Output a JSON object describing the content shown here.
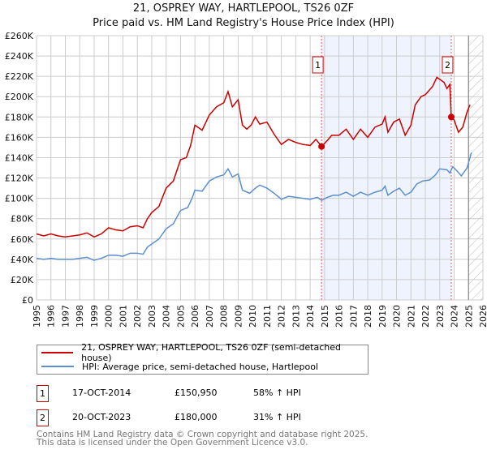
{
  "chart_data": {
    "type": "line",
    "title": "21, OSPREY WAY, HARTLEPOOL, TS26 0ZF",
    "subtitle": "Price paid vs. HM Land Registry's House Price Index (HPI)",
    "xlim": [
      1995,
      2026
    ],
    "ylim": [
      0,
      260000
    ],
    "x_ticks": [
      "1995",
      "1996",
      "1997",
      "1998",
      "1999",
      "2000",
      "2001",
      "2002",
      "2003",
      "2004",
      "2005",
      "2006",
      "2007",
      "2008",
      "2009",
      "2010",
      "2011",
      "2012",
      "2013",
      "2014",
      "2015",
      "2016",
      "2017",
      "2018",
      "2019",
      "2020",
      "2021",
      "2022",
      "2023",
      "2024",
      "2025",
      "2026"
    ],
    "y_ticks": [
      {
        "v": 0,
        "label": "£0"
      },
      {
        "v": 20000,
        "label": "£20K"
      },
      {
        "v": 40000,
        "label": "£40K"
      },
      {
        "v": 60000,
        "label": "£60K"
      },
      {
        "v": 80000,
        "label": "£80K"
      },
      {
        "v": 100000,
        "label": "£100K"
      },
      {
        "v": 120000,
        "label": "£120K"
      },
      {
        "v": 140000,
        "label": "£140K"
      },
      {
        "v": 160000,
        "label": "£160K"
      },
      {
        "v": 180000,
        "label": "£180K"
      },
      {
        "v": 200000,
        "label": "£200K"
      },
      {
        "v": 220000,
        "label": "£220K"
      },
      {
        "v": 240000,
        "label": "£240K"
      },
      {
        "v": 260000,
        "label": "£260K"
      }
    ],
    "grid": true,
    "series": [
      {
        "name": "21, OSPREY WAY, HARTLEPOOL, TS26 0ZF (semi-detached house)",
        "color": "#cc0000",
        "points": [
          [
            1995,
            65
          ],
          [
            1995.5,
            63
          ],
          [
            1996,
            65
          ],
          [
            1996.5,
            63
          ],
          [
            1997,
            62
          ],
          [
            1997.5,
            63
          ],
          [
            1998,
            64
          ],
          [
            1998.5,
            66
          ],
          [
            1999,
            62
          ],
          [
            1999.5,
            65
          ],
          [
            2000,
            71
          ],
          [
            2000.5,
            69
          ],
          [
            2001,
            68
          ],
          [
            2001.5,
            72
          ],
          [
            2002,
            73
          ],
          [
            2002.4,
            71
          ],
          [
            2002.7,
            80
          ],
          [
            2003,
            86
          ],
          [
            2003.5,
            92
          ],
          [
            2004,
            110
          ],
          [
            2004.5,
            117
          ],
          [
            2005,
            138
          ],
          [
            2005.4,
            140
          ],
          [
            2005.7,
            152
          ],
          [
            2006,
            172
          ],
          [
            2006.5,
            167
          ],
          [
            2007,
            182
          ],
          [
            2007.5,
            190
          ],
          [
            2008,
            194
          ],
          [
            2008.3,
            205
          ],
          [
            2008.6,
            190
          ],
          [
            2009,
            197
          ],
          [
            2009.3,
            172
          ],
          [
            2009.6,
            168
          ],
          [
            2009.9,
            172
          ],
          [
            2010.2,
            180
          ],
          [
            2010.5,
            173
          ],
          [
            2011,
            175
          ],
          [
            2011.5,
            163
          ],
          [
            2012,
            153
          ],
          [
            2012.5,
            158
          ],
          [
            2013,
            155
          ],
          [
            2013.5,
            153
          ],
          [
            2014,
            152
          ],
          [
            2014.4,
            158
          ],
          [
            2014.8,
            151
          ],
          [
            2015.2,
            157
          ],
          [
            2015.5,
            162
          ],
          [
            2016,
            162
          ],
          [
            2016.5,
            168
          ],
          [
            2017,
            158
          ],
          [
            2017.5,
            168
          ],
          [
            2018,
            160
          ],
          [
            2018.5,
            170
          ],
          [
            2019,
            173
          ],
          [
            2019.2,
            180
          ],
          [
            2019.4,
            165
          ],
          [
            2019.8,
            175
          ],
          [
            2020.2,
            178
          ],
          [
            2020.6,
            162
          ],
          [
            2021,
            172
          ],
          [
            2021.3,
            192
          ],
          [
            2021.7,
            200
          ],
          [
            2022,
            202
          ],
          [
            2022.5,
            210
          ],
          [
            2022.8,
            219
          ],
          [
            2023.3,
            214
          ],
          [
            2023.5,
            208
          ],
          [
            2023.7,
            212
          ],
          [
            2023.8,
            180
          ],
          [
            2024,
            177
          ],
          [
            2024.3,
            165
          ],
          [
            2024.6,
            170
          ],
          [
            2024.9,
            185
          ],
          [
            2025.1,
            192
          ]
        ]
      },
      {
        "name": "HPI: Average price, semi-detached house, Hartlepool",
        "color": "#5b8fd0",
        "points": [
          [
            1995,
            41
          ],
          [
            1995.5,
            40
          ],
          [
            1996,
            41
          ],
          [
            1996.5,
            40
          ],
          [
            1997,
            40
          ],
          [
            1997.5,
            40
          ],
          [
            1998,
            41
          ],
          [
            1998.5,
            42
          ],
          [
            1999,
            39
          ],
          [
            1999.5,
            41
          ],
          [
            2000,
            44
          ],
          [
            2000.5,
            44
          ],
          [
            2001,
            43
          ],
          [
            2001.5,
            46
          ],
          [
            2002,
            46
          ],
          [
            2002.4,
            45
          ],
          [
            2002.7,
            52
          ],
          [
            2003,
            55
          ],
          [
            2003.5,
            60
          ],
          [
            2004,
            70
          ],
          [
            2004.5,
            75
          ],
          [
            2005,
            88
          ],
          [
            2005.5,
            91
          ],
          [
            2005.8,
            100
          ],
          [
            2006,
            108
          ],
          [
            2006.5,
            107
          ],
          [
            2007,
            117
          ],
          [
            2007.5,
            121
          ],
          [
            2008,
            123
          ],
          [
            2008.3,
            129
          ],
          [
            2008.6,
            121
          ],
          [
            2009,
            124
          ],
          [
            2009.3,
            108
          ],
          [
            2009.8,
            105
          ],
          [
            2010.2,
            110
          ],
          [
            2010.5,
            113
          ],
          [
            2011,
            110
          ],
          [
            2011.5,
            105
          ],
          [
            2012,
            99
          ],
          [
            2012.5,
            102
          ],
          [
            2013,
            101
          ],
          [
            2013.5,
            100
          ],
          [
            2014,
            99
          ],
          [
            2014.5,
            101
          ],
          [
            2014.8,
            98
          ],
          [
            2015.2,
            101
          ],
          [
            2015.6,
            103
          ],
          [
            2016,
            103
          ],
          [
            2016.5,
            106
          ],
          [
            2017,
            102
          ],
          [
            2017.5,
            106
          ],
          [
            2018,
            103
          ],
          [
            2018.5,
            106
          ],
          [
            2019,
            108
          ],
          [
            2019.2,
            112
          ],
          [
            2019.4,
            103
          ],
          [
            2019.8,
            107
          ],
          [
            2020.2,
            110
          ],
          [
            2020.6,
            103
          ],
          [
            2021,
            106
          ],
          [
            2021.4,
            114
          ],
          [
            2021.8,
            117
          ],
          [
            2022.3,
            118
          ],
          [
            2022.7,
            123
          ],
          [
            2023,
            129
          ],
          [
            2023.5,
            128
          ],
          [
            2023.7,
            125
          ],
          [
            2023.9,
            131
          ],
          [
            2024.2,
            127
          ],
          [
            2024.5,
            122
          ],
          [
            2024.9,
            130
          ],
          [
            2025.2,
            145
          ]
        ]
      }
    ],
    "sales": [
      {
        "id": "1",
        "x": 2014.79,
        "y": 150950
      },
      {
        "id": "2",
        "x": 2023.8,
        "y": 180000
      }
    ],
    "shaded_range": [
      2014.79,
      2023.8
    ],
    "forecast_hatch_from": 2025.0
  },
  "legend": {
    "items": [
      {
        "label": "21, OSPREY WAY, HARTLEPOOL, TS26 0ZF (semi-detached house)",
        "color": "#cc0000"
      },
      {
        "label": "HPI: Average price, semi-detached house, Hartlepool",
        "color": "#5b8fd0"
      }
    ]
  },
  "table": [
    {
      "id": "1",
      "date": "17-OCT-2014",
      "price": "£150,950",
      "hpi": "58% ↑ HPI"
    },
    {
      "id": "2",
      "date": "20-OCT-2023",
      "price": "£180,000",
      "hpi": "31% ↑ HPI"
    }
  ],
  "footer": {
    "line1": "Contains HM Land Registry data © Crown copyright and database right 2025.",
    "line2": "This data is licensed under the Open Government Licence v3.0."
  }
}
